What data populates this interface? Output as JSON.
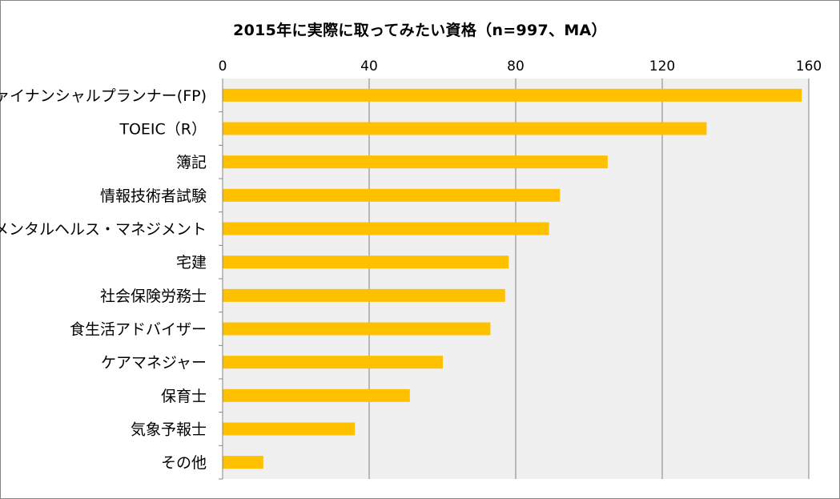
{
  "chart_data": {
    "type": "bar",
    "orientation": "horizontal",
    "title": "2015年に実際に取ってみたい資格（n=997、MA）",
    "categories": [
      "ファイナンシャルプランナー(FP)",
      "TOEIC（R）",
      "簿記",
      "情報技術者試験",
      "メンタルヘルス・マネジメント",
      "宅建",
      "社会保険労務士",
      "食生活アドバイザー",
      "ケアマネジャー",
      "保育士",
      "気象予報士",
      "その他"
    ],
    "values": [
      158,
      132,
      105,
      92,
      89,
      78,
      77,
      73,
      60,
      51,
      36,
      11
    ],
    "xlim": [
      0,
      160
    ],
    "xticks": [
      0,
      40,
      80,
      120,
      160
    ],
    "xlabel": "",
    "ylabel": "",
    "grid": true,
    "legend": "none",
    "bar_color": "#FFC000",
    "plot_background": "#F0F0F0",
    "gridline_color": "#808080"
  }
}
